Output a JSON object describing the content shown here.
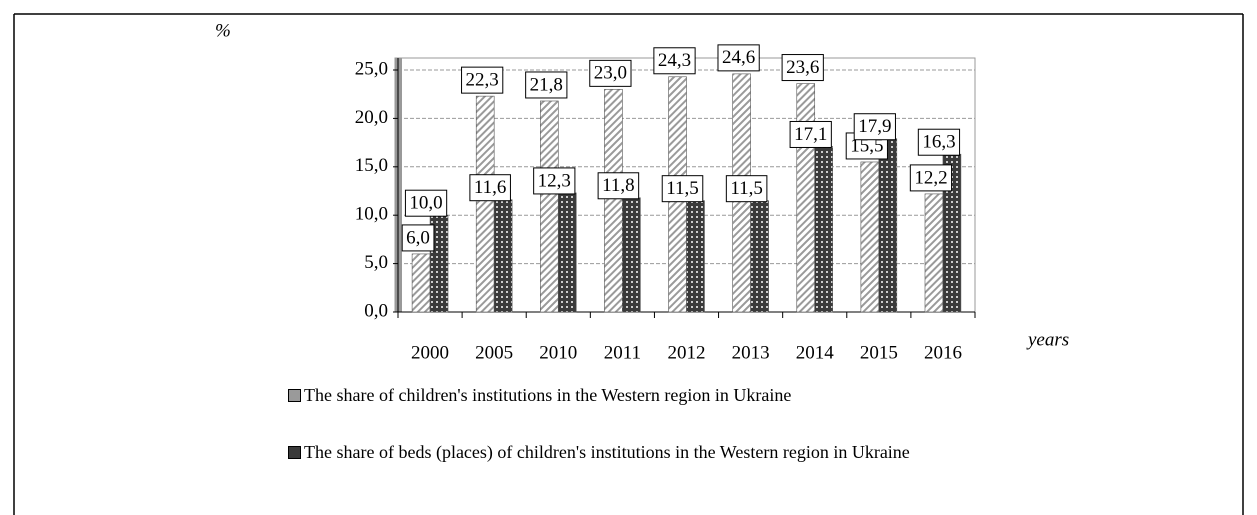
{
  "chart_data": {
    "type": "bar",
    "ylabel": "%",
    "xlabel": "years",
    "categories": [
      "2000",
      "2005",
      "2010",
      "2011",
      "2012",
      "2013",
      "2014",
      "2015",
      "2016"
    ],
    "series": [
      {
        "name": "The share of children's institutions in the Western region in Ukraine",
        "color": "#9a9a9a",
        "values": [
          6.0,
          22.3,
          21.8,
          23.0,
          24.3,
          24.6,
          23.6,
          15.5,
          12.2
        ],
        "value_labels": [
          "6,0",
          "22,3",
          "21,8",
          "23,0",
          "24,3",
          "24,6",
          "23,6",
          "15,5",
          "12,2"
        ]
      },
      {
        "name": "The share of beds (places) of children's institutions in the Western region in Ukraine",
        "color": "#3a3a3a",
        "values": [
          10.0,
          11.6,
          12.3,
          11.8,
          11.5,
          11.5,
          17.1,
          17.9,
          16.3
        ],
        "value_labels": [
          "10,0",
          "11,6",
          "12,3",
          "11,8",
          "11,5",
          "11,5",
          "17,1",
          "17,9",
          "16,3"
        ]
      }
    ],
    "ylim": [
      0,
      25
    ],
    "yticks": [
      {
        "value": 0,
        "label": "0,0"
      },
      {
        "value": 5,
        "label": "5,0"
      },
      {
        "value": 10,
        "label": "10,0"
      },
      {
        "value": 15,
        "label": "15,0"
      },
      {
        "value": 20,
        "label": "20,0"
      },
      {
        "value": 25,
        "label": "25,0"
      }
    ],
    "grid": true,
    "legend": "bottom"
  }
}
